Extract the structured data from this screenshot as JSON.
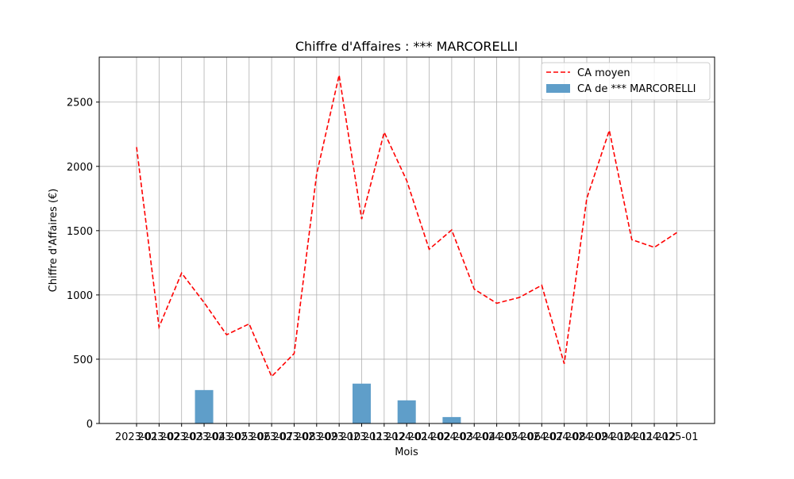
{
  "chart_data": {
    "type": "bar",
    "title": "Chiffre d'Affaires : *** MARCORELLI",
    "xlabel": "Mois",
    "ylabel": "Chiffre d'Affaires (€)",
    "ylim": [
      0,
      2850
    ],
    "yticks": [
      0,
      500,
      1000,
      1500,
      2000,
      2500
    ],
    "grid": true,
    "legend_position": "top-right",
    "categories": [
      "2023-01",
      "2023-02",
      "2023-03",
      "2023-04",
      "2023-05",
      "2023-06",
      "2023-07",
      "2023-08",
      "2023-09",
      "2023-10",
      "2023-11",
      "2023-12",
      "2024-01",
      "2024-02",
      "2024-03",
      "2024-04",
      "2024-05",
      "2024-06",
      "2024-07",
      "2024-08",
      "2024-09",
      "2024-10",
      "2024-11",
      "2024-12",
      "2025-01"
    ],
    "series": [
      {
        "name": "CA moyen",
        "kind": "line",
        "style": "dashed",
        "color": "#ff0000",
        "values": [
          2150,
          750,
          1170,
          940,
          690,
          775,
          365,
          545,
          1940,
          2710,
          1590,
          2265,
          1890,
          1355,
          1505,
          1045,
          935,
          980,
          1075,
          465,
          1750,
          2280,
          1430,
          1370,
          1485
        ]
      },
      {
        "name": "CA de *** MARCORELLI",
        "kind": "bar",
        "color": "#5f9ec9",
        "values": [
          null,
          null,
          null,
          260,
          null,
          null,
          null,
          null,
          null,
          null,
          310,
          null,
          180,
          null,
          50,
          null,
          null,
          null,
          null,
          null,
          null,
          null,
          null,
          null,
          null
        ]
      }
    ]
  }
}
